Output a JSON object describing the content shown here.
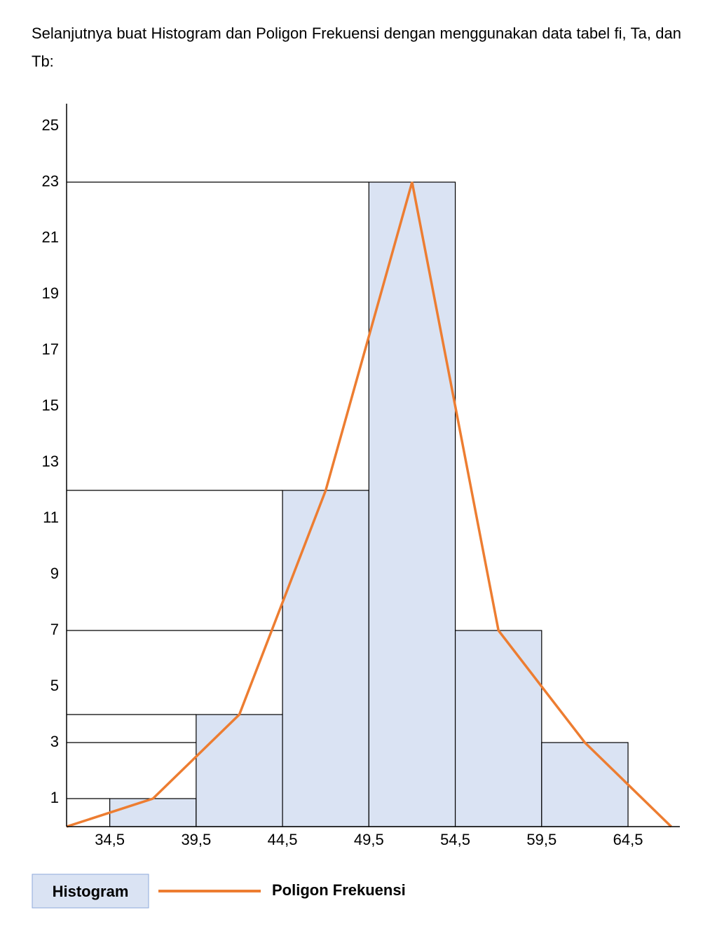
{
  "text": "Selanjutnya buat Histogram dan Poligon Frekuensi dengan menggunakan data tabel fi, Ta, dan Tb:",
  "chart_data": {
    "type": "histogram",
    "bins": [
      34.5,
      39.5,
      44.5,
      49.5,
      54.5,
      59.5,
      64.5
    ],
    "series": [
      {
        "name": "Histogram",
        "color": "#dae3f3",
        "values": [
          1,
          4,
          12,
          23,
          7,
          3
        ]
      },
      {
        "name": "Poligon Frekuensi",
        "color": "#ed7d31",
        "x": [
          32,
          37,
          42,
          47,
          52,
          57,
          62,
          67
        ],
        "values": [
          0,
          1,
          4,
          12,
          23,
          7,
          3,
          0
        ]
      }
    ],
    "xlim": [
      32,
      67.5
    ],
    "ylim": [
      0,
      25.8
    ],
    "xticks": [
      {
        "value": 34.5,
        "label": "34,5"
      },
      {
        "value": 39.5,
        "label": "39,5"
      },
      {
        "value": 44.5,
        "label": "44,5"
      },
      {
        "value": 49.5,
        "label": "49,5"
      },
      {
        "value": 54.5,
        "label": "54,5"
      },
      {
        "value": 59.5,
        "label": "59,5"
      },
      {
        "value": 64.5,
        "label": "64,5"
      }
    ],
    "yticks": [
      1,
      3,
      5,
      7,
      9,
      11,
      13,
      15,
      17,
      19,
      21,
      23,
      25
    ],
    "grid": false
  }
}
